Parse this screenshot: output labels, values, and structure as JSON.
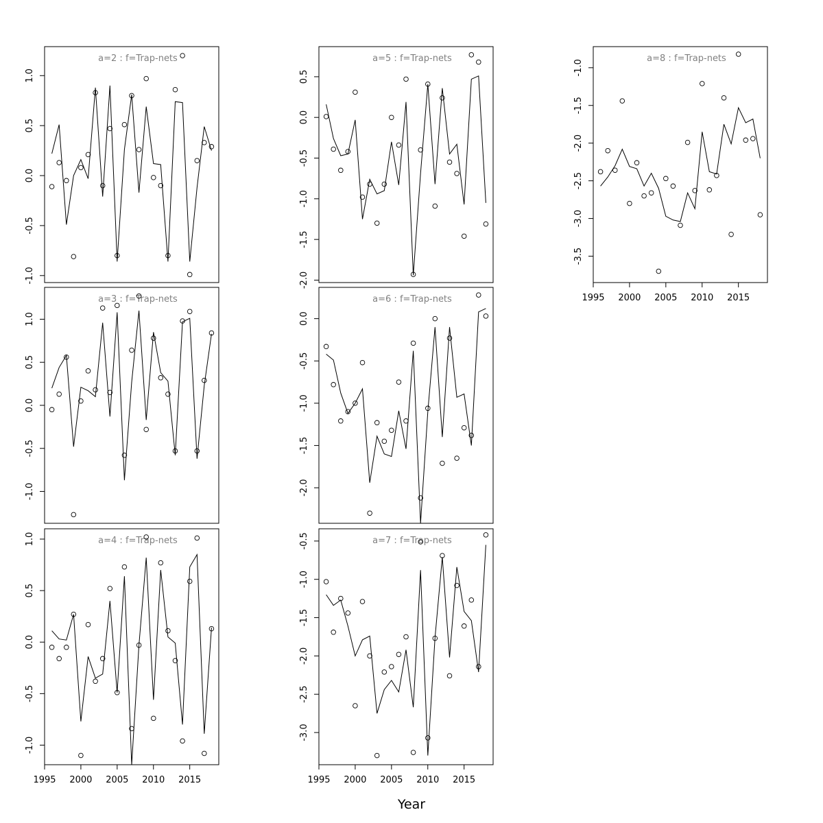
{
  "chart_data": {
    "type": "scatter",
    "xlabel": "Year",
    "panels": [
      {
        "id": "a2",
        "title": "a=2 : f=Trap-nets",
        "xlim": [
          1995,
          2019
        ],
        "ylim": [
          -1.07,
          1.29
        ],
        "yticks": [
          -1.0,
          -0.5,
          0.0,
          0.5,
          1.0
        ],
        "ytick_labels": [
          "-1.0",
          "-0.5",
          "0.0",
          "0.5",
          "1.0"
        ],
        "show_xaxis": false,
        "years": [
          1996,
          1997,
          1998,
          1999,
          2000,
          2001,
          2002,
          2003,
          2004,
          2005,
          2006,
          2007,
          2008,
          2009,
          2010,
          2011,
          2012,
          2013,
          2014,
          2015,
          2016,
          2017,
          2018
        ],
        "observed": [
          -0.11,
          0.13,
          -0.05,
          -0.81,
          0.08,
          0.21,
          0.83,
          -0.1,
          0.47,
          -0.8,
          0.51,
          0.8,
          0.26,
          0.97,
          -0.02,
          -0.1,
          -0.8,
          0.86,
          1.2,
          -0.99,
          0.15,
          0.33,
          0.29
        ],
        "fitted": [
          0.22,
          0.51,
          -0.49,
          0.0,
          0.16,
          -0.03,
          0.88,
          -0.21,
          0.9,
          -0.86,
          0.26,
          0.81,
          -0.17,
          0.69,
          0.12,
          0.11,
          -0.86,
          0.74,
          0.73,
          -0.86,
          -0.12,
          0.49,
          0.25
        ]
      },
      {
        "id": "a3",
        "title": "a=3 : f=Trap-nets",
        "xlim": [
          1995,
          2019
        ],
        "ylim": [
          -1.37,
          1.37
        ],
        "yticks": [
          -1.0,
          -0.5,
          0.0,
          0.5,
          1.0
        ],
        "ytick_labels": [
          "-1.0",
          "-0.5",
          "0.0",
          "0.5",
          "1.0"
        ],
        "show_xaxis": false,
        "years": [
          1996,
          1997,
          1998,
          1999,
          2000,
          2001,
          2002,
          2003,
          2004,
          2005,
          2006,
          2007,
          2008,
          2009,
          2010,
          2011,
          2012,
          2013,
          2014,
          2015,
          2016,
          2017,
          2018
        ],
        "observed": [
          -0.05,
          0.13,
          0.56,
          -1.27,
          0.05,
          0.4,
          0.18,
          1.13,
          0.15,
          1.16,
          -0.58,
          0.64,
          1.27,
          -0.28,
          0.78,
          0.32,
          0.13,
          -0.53,
          0.98,
          1.09,
          -0.53,
          0.29,
          0.84
        ],
        "fitted": [
          0.2,
          0.44,
          0.58,
          -0.48,
          0.21,
          0.17,
          0.1,
          0.96,
          -0.13,
          1.08,
          -0.87,
          0.27,
          1.1,
          -0.17,
          0.85,
          0.38,
          0.28,
          -0.58,
          0.97,
          1.01,
          -0.62,
          0.23,
          0.83
        ]
      },
      {
        "id": "a4",
        "title": "a=4 : f=Trap-nets",
        "xlim": [
          1995,
          2019
        ],
        "ylim": [
          -1.19,
          1.1
        ],
        "yticks": [
          -1.0,
          -0.5,
          0.0,
          0.5,
          1.0
        ],
        "ytick_labels": [
          "-1.0",
          "-0.5",
          "0.0",
          "0.5",
          "1.0"
        ],
        "show_xaxis": true,
        "xticks": [
          1995,
          2000,
          2005,
          2010,
          2015
        ],
        "xtick_labels": [
          "1995",
          "2000",
          "2005",
          "2010",
          "2015"
        ],
        "years": [
          1996,
          1997,
          1998,
          1999,
          2000,
          2001,
          2002,
          2003,
          2004,
          2005,
          2006,
          2007,
          2008,
          2009,
          2010,
          2011,
          2012,
          2013,
          2014,
          2015,
          2016,
          2017,
          2018
        ],
        "observed": [
          -0.05,
          -0.16,
          -0.05,
          0.27,
          -1.1,
          0.17,
          -0.38,
          -0.16,
          0.52,
          -0.49,
          0.73,
          -0.84,
          -0.03,
          1.02,
          -0.74,
          0.77,
          0.11,
          -0.18,
          -0.96,
          0.59,
          1.01,
          -1.08,
          0.13
        ],
        "fitted": [
          0.11,
          0.03,
          0.02,
          0.27,
          -0.77,
          -0.14,
          -0.35,
          -0.31,
          0.4,
          -0.49,
          0.64,
          -1.19,
          -0.03,
          0.82,
          -0.56,
          0.7,
          0.05,
          -0.01,
          -0.8,
          0.73,
          0.85,
          -0.89,
          0.14
        ]
      },
      {
        "id": "a5",
        "title": "a=5 : f=Trap-nets",
        "xlim": [
          1995,
          2019
        ],
        "ylim": [
          -2.03,
          0.87
        ],
        "yticks": [
          -2.0,
          -1.5,
          -1.0,
          -0.5,
          0.0,
          0.5
        ],
        "ytick_labels": [
          "-2.0",
          "-1.5",
          "-1.0",
          "-0.5",
          "0.0",
          "0.5"
        ],
        "show_xaxis": false,
        "years": [
          1996,
          1997,
          1998,
          1999,
          2000,
          2001,
          2002,
          2003,
          2004,
          2005,
          2006,
          2007,
          2008,
          2009,
          2010,
          2011,
          2012,
          2013,
          2014,
          2015,
          2016,
          2017,
          2018
        ],
        "observed": [
          0.01,
          -0.39,
          -0.65,
          -0.42,
          0.31,
          -0.98,
          -0.82,
          -1.3,
          -0.82,
          0.0,
          -0.34,
          0.47,
          -1.93,
          -0.4,
          0.41,
          -1.09,
          0.24,
          -0.55,
          -0.69,
          -1.46,
          0.77,
          0.68,
          -1.31
        ],
        "fitted": [
          0.16,
          -0.26,
          -0.47,
          -0.45,
          -0.03,
          -1.25,
          -0.76,
          -0.94,
          -0.9,
          -0.3,
          -0.83,
          0.19,
          -1.94,
          -0.69,
          0.41,
          -0.82,
          0.36,
          -0.45,
          -0.33,
          -1.07,
          0.47,
          0.51,
          -1.05
        ]
      },
      {
        "id": "a6",
        "title": "a=6 : f=Trap-nets",
        "xlim": [
          1995,
          2019
        ],
        "ylim": [
          -2.42,
          0.37
        ],
        "yticks": [
          -2.0,
          -1.5,
          -1.0,
          -0.5,
          0.0
        ],
        "ytick_labels": [
          "-2.0",
          "-1.5",
          "-1.0",
          "-0.5",
          "0.0"
        ],
        "show_xaxis": false,
        "years": [
          1996,
          1997,
          1998,
          1999,
          2000,
          2001,
          2002,
          2003,
          2004,
          2005,
          2006,
          2007,
          2008,
          2009,
          2010,
          2011,
          2012,
          2013,
          2014,
          2015,
          2016,
          2017,
          2018
        ],
        "observed": [
          -0.33,
          -0.78,
          -1.21,
          -1.1,
          -1.0,
          -0.52,
          -2.3,
          -1.23,
          -1.45,
          -1.32,
          -0.75,
          -1.21,
          -0.29,
          -2.12,
          -1.06,
          0.0,
          -1.71,
          -0.23,
          -1.65,
          -1.29,
          -1.38,
          0.28,
          0.03
        ],
        "fitted": [
          -0.42,
          -0.49,
          -0.88,
          -1.12,
          -1.0,
          -0.83,
          -1.94,
          -1.39,
          -1.6,
          -1.63,
          -1.09,
          -1.54,
          -0.38,
          -2.42,
          -1.1,
          -0.1,
          -1.4,
          -0.1,
          -0.93,
          -0.89,
          -1.5,
          0.08,
          0.12
        ]
      },
      {
        "id": "a7",
        "title": "a=7 : f=Trap-nets",
        "xlim": [
          1995,
          2019
        ],
        "ylim": [
          -3.42,
          -0.34
        ],
        "yticks": [
          -3.0,
          -2.5,
          -2.0,
          -1.5,
          -1.0,
          -0.5
        ],
        "ytick_labels": [
          "-3.0",
          "-2.5",
          "-2.0",
          "-1.5",
          "-1.0",
          "-0.5"
        ],
        "show_xaxis": true,
        "xticks": [
          1995,
          2000,
          2005,
          2010,
          2015
        ],
        "xtick_labels": [
          "1995",
          "2000",
          "2005",
          "2010",
          "2015"
        ],
        "years": [
          1996,
          1997,
          1998,
          1999,
          2000,
          2001,
          2002,
          2003,
          2004,
          2005,
          2006,
          2007,
          2008,
          2009,
          2010,
          2011,
          2012,
          2013,
          2014,
          2015,
          2016,
          2017,
          2018
        ],
        "observed": [
          -1.03,
          -1.69,
          -1.25,
          -1.44,
          -2.65,
          -1.29,
          -2.0,
          -3.3,
          -2.21,
          -2.14,
          -1.98,
          -1.75,
          -3.26,
          -0.51,
          -3.07,
          -1.77,
          -0.69,
          -2.26,
          -1.08,
          -1.61,
          -1.27,
          -2.14,
          -0.42
        ],
        "fitted": [
          -1.2,
          -1.34,
          -1.27,
          -1.61,
          -2.0,
          -1.79,
          -1.74,
          -2.75,
          -2.44,
          -2.32,
          -2.47,
          -1.92,
          -2.67,
          -0.88,
          -3.3,
          -1.76,
          -0.71,
          -2.02,
          -0.84,
          -1.42,
          -1.54,
          -2.21,
          -0.55
        ]
      },
      {
        "id": "a8",
        "title": "a=8 : f=Trap-nets",
        "xlim": [
          1995,
          2019
        ],
        "ylim": [
          -3.85,
          -0.72
        ],
        "yticks": [
          -3.5,
          -3.0,
          -2.5,
          -2.0,
          -1.5,
          -1.0
        ],
        "ytick_labels": [
          "-3.5",
          "-3.0",
          "-2.5",
          "-2.0",
          "-1.5",
          "-1.0"
        ],
        "show_xaxis": true,
        "xticks": [
          1995,
          2000,
          2005,
          2010,
          2015
        ],
        "xtick_labels": [
          "1995",
          "2000",
          "2005",
          "2010",
          "2015"
        ],
        "years": [
          1996,
          1997,
          1998,
          1999,
          2000,
          2001,
          2002,
          2003,
          2004,
          2005,
          2006,
          2007,
          2008,
          2009,
          2010,
          2011,
          2012,
          2013,
          2014,
          2015,
          2016,
          2017,
          2018
        ],
        "observed": [
          -2.38,
          -2.1,
          -2.36,
          -1.44,
          -2.8,
          -2.26,
          -2.7,
          -2.66,
          -3.7,
          -2.47,
          -2.57,
          -3.09,
          -1.99,
          -2.63,
          -1.21,
          -2.62,
          -2.43,
          -1.4,
          -3.21,
          -0.82,
          -1.96,
          -1.94,
          -2.95
        ],
        "fitted": [
          -2.57,
          -2.45,
          -2.3,
          -2.08,
          -2.31,
          -2.34,
          -2.57,
          -2.4,
          -2.6,
          -2.97,
          -3.02,
          -3.04,
          -2.66,
          -2.87,
          -1.85,
          -2.38,
          -2.41,
          -1.75,
          -2.01,
          -1.53,
          -1.73,
          -1.68,
          -2.2
        ]
      }
    ]
  }
}
